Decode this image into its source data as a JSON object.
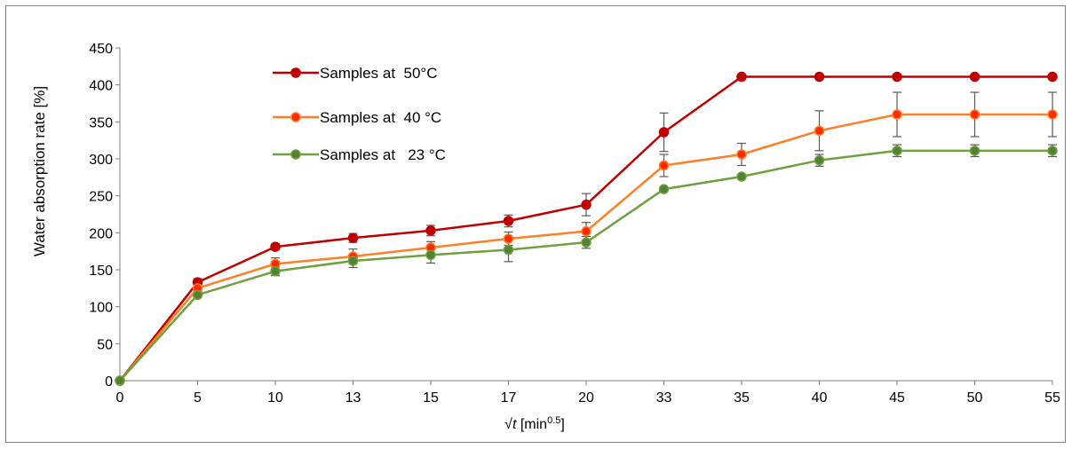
{
  "chart_data": {
    "type": "line",
    "xlabel_prefix": "√",
    "xlabel_var": "t",
    "xlabel_unit_pre": " [min",
    "xlabel_sup": "0.5",
    "xlabel_unit_post": "]",
    "ylabel": "Water absorption rate [%]",
    "ylim": [
      0,
      450
    ],
    "yticks": [
      0,
      50,
      100,
      150,
      200,
      250,
      300,
      350,
      400,
      450
    ],
    "categories": [
      "0",
      "5",
      "10",
      "13",
      "15",
      "17",
      "20",
      "33",
      "35",
      "40",
      "45",
      "50",
      "55"
    ],
    "grid": false,
    "legend_position": "top-left",
    "series": [
      {
        "name": "Samples at  50°C",
        "color": "#c00000",
        "marker_fill": "#c00000",
        "values": [
          0,
          133,
          181,
          193,
          203,
          216,
          238,
          336,
          411,
          411,
          411,
          411,
          411
        ],
        "errors": [
          0,
          5,
          4,
          6,
          7,
          8,
          15,
          26,
          0,
          0,
          0,
          0,
          0
        ]
      },
      {
        "name": "Samples at  40 °C",
        "color": "#ff7f27",
        "marker_fill": "#ff2a00",
        "values": [
          0,
          125,
          158,
          168,
          180,
          192,
          202,
          291,
          306,
          338,
          360,
          360,
          360
        ],
        "errors": [
          0,
          4,
          8,
          10,
          8,
          9,
          12,
          15,
          15,
          27,
          30,
          30,
          30
        ]
      },
      {
        "name": "Samples at   23 °C",
        "color": "#70a040",
        "marker_fill": "#538135",
        "values": [
          0,
          116,
          148,
          162,
          170,
          177,
          187,
          259,
          276,
          298,
          311,
          311,
          311
        ],
        "errors": [
          0,
          3,
          6,
          9,
          11,
          16,
          8,
          0,
          0,
          8,
          8,
          8,
          8
        ]
      }
    ]
  }
}
